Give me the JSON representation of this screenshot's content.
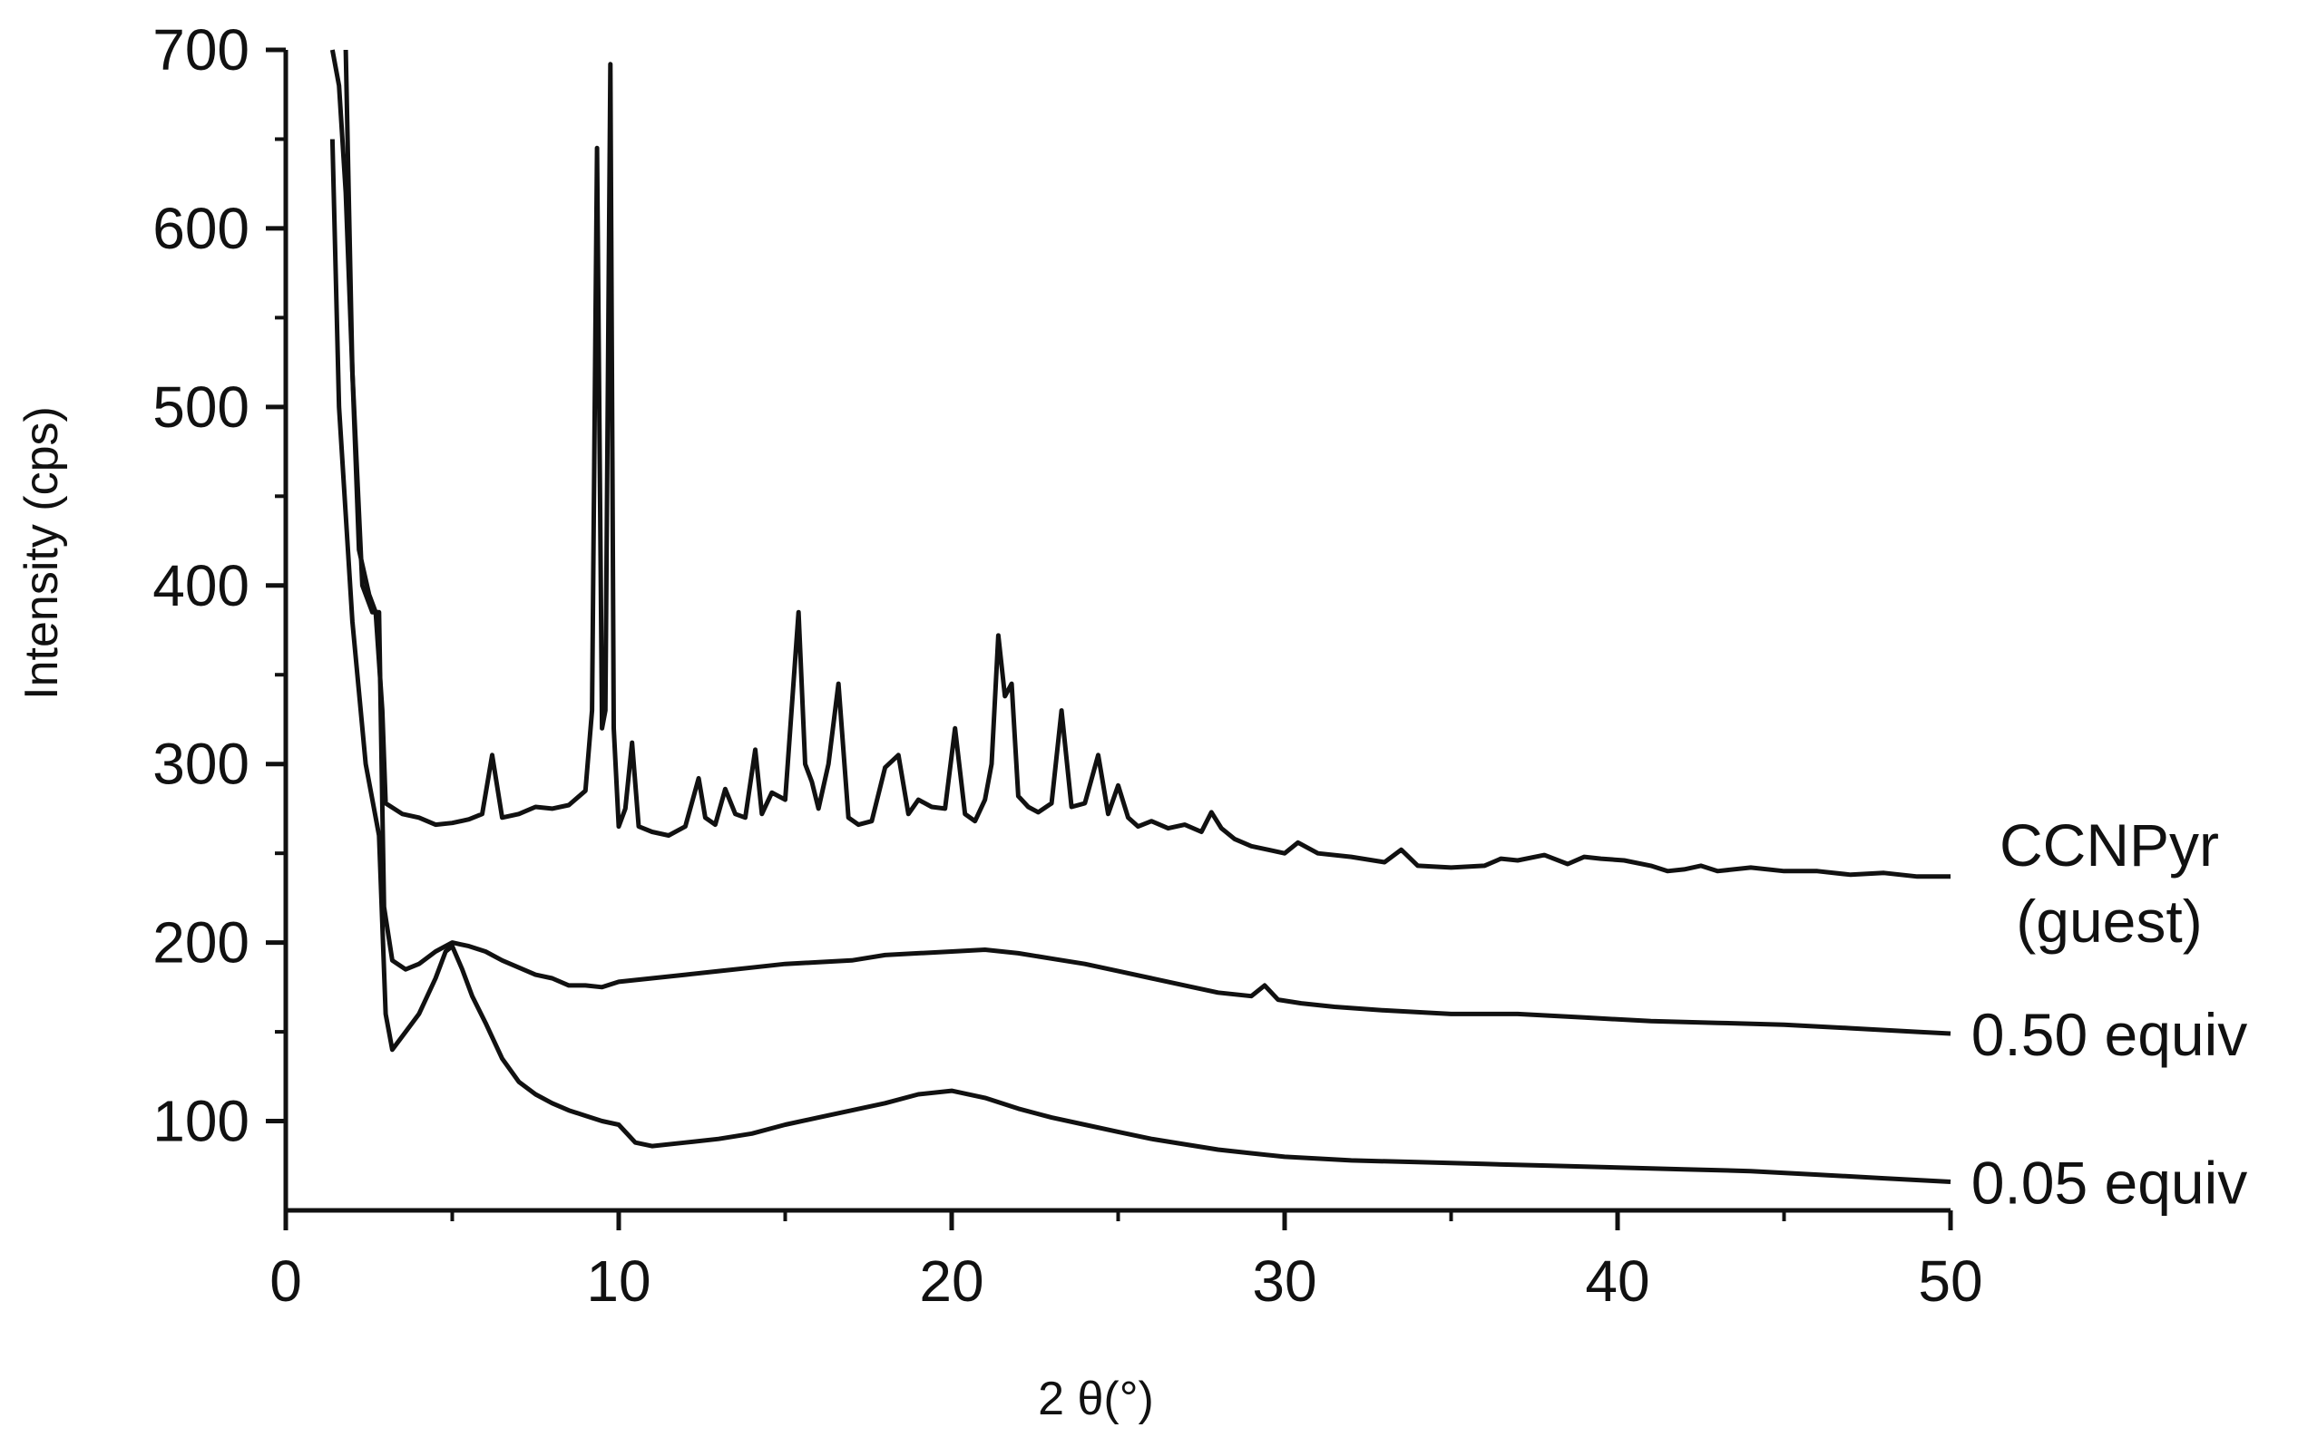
{
  "chart_data": {
    "type": "line",
    "title": "",
    "xlabel": "2 θ(°)",
    "ylabel": "Intensity (cps)",
    "xlim": [
      0,
      50
    ],
    "ylim": [
      50,
      700
    ],
    "x_ticks": [
      0,
      10,
      20,
      30,
      40,
      50
    ],
    "y_ticks": [
      100,
      200,
      300,
      400,
      500,
      600,
      700
    ],
    "grid": false,
    "legend": "none (series labeled at right end of each trace)",
    "line_color": "#111111",
    "series": [
      {
        "name": "CCNPyr (guest)",
        "label_lines": [
          "CCNPyr",
          "(guest)"
        ],
        "x": [
          1.4,
          1.6,
          1.8,
          2.0,
          2.2,
          2.5,
          2.7,
          2.9,
          3.0,
          3.5,
          4.0,
          4.5,
          5.0,
          5.5,
          5.9,
          6.2,
          6.5,
          7.0,
          7.5,
          8.0,
          8.5,
          9.0,
          9.2,
          9.35,
          9.5,
          9.6,
          9.75,
          9.85,
          10.0,
          10.2,
          10.4,
          10.6,
          11.0,
          11.5,
          12.0,
          12.4,
          12.6,
          12.9,
          13.2,
          13.5,
          13.8,
          14.1,
          14.3,
          14.6,
          15.0,
          15.4,
          15.6,
          15.8,
          16.0,
          16.3,
          16.6,
          16.9,
          17.2,
          17.6,
          18.0,
          18.4,
          18.7,
          19.0,
          19.4,
          19.8,
          20.1,
          20.4,
          20.7,
          21.0,
          21.2,
          21.4,
          21.6,
          21.8,
          22.0,
          22.3,
          22.6,
          23.0,
          23.3,
          23.6,
          24.0,
          24.4,
          24.7,
          25.0,
          25.3,
          25.6,
          26.0,
          26.5,
          27.0,
          27.5,
          27.8,
          28.1,
          28.5,
          29.0,
          29.5,
          30.0,
          30.4,
          31.0,
          32.0,
          33.0,
          33.5,
          34.0,
          35.0,
          36.0,
          36.5,
          37.0,
          37.8,
          38.5,
          39.0,
          39.5,
          40.2,
          41.0,
          41.5,
          42.0,
          42.5,
          43.0,
          44.0,
          45.0,
          46.0,
          47.0,
          48.0,
          49.0,
          50.0
        ],
        "y": [
          700,
          680,
          620,
          520,
          420,
          395,
          385,
          330,
          278,
          272,
          270,
          266,
          267,
          269,
          272,
          305,
          270,
          272,
          276,
          275,
          277,
          285,
          330,
          645,
          320,
          330,
          692,
          320,
          265,
          275,
          312,
          265,
          262,
          260,
          265,
          292,
          270,
          266,
          286,
          272,
          270,
          308,
          272,
          284,
          280,
          385,
          300,
          290,
          275,
          300,
          345,
          270,
          266,
          268,
          298,
          305,
          272,
          280,
          276,
          275,
          320,
          272,
          268,
          280,
          300,
          372,
          338,
          345,
          282,
          276,
          273,
          278,
          330,
          276,
          278,
          305,
          272,
          288,
          270,
          265,
          268,
          264,
          266,
          262,
          273,
          264,
          258,
          254,
          252,
          250,
          256,
          250,
          248,
          245,
          252,
          243,
          242,
          243,
          247,
          246,
          249,
          244,
          248,
          247,
          246,
          243,
          240,
          241,
          243,
          240,
          242,
          240,
          240,
          238,
          239,
          237,
          237
        ]
      },
      {
        "name": "0.50 equiv",
        "label_lines": [
          "0.50 equiv"
        ],
        "x": [
          1.8,
          2.0,
          2.3,
          2.6,
          2.8,
          2.95,
          3.2,
          3.6,
          4.0,
          4.5,
          5.0,
          5.5,
          6.0,
          6.5,
          7.0,
          7.5,
          8.0,
          8.5,
          9.0,
          9.5,
          10.0,
          11.0,
          12.0,
          13.0,
          14.0,
          15.0,
          16.0,
          17.0,
          18.0,
          19.0,
          20.0,
          21.0,
          22.0,
          23.0,
          24.0,
          25.0,
          26.0,
          27.0,
          28.0,
          29.0,
          29.4,
          29.8,
          30.5,
          31.5,
          33.0,
          35.0,
          37.0,
          39.0,
          41.0,
          43.0,
          45.0,
          47.0,
          49.0,
          50.0
        ],
        "y": [
          700,
          520,
          400,
          385,
          385,
          220,
          190,
          185,
          188,
          195,
          200,
          198,
          195,
          190,
          186,
          182,
          180,
          176,
          176,
          175,
          178,
          180,
          182,
          184,
          186,
          188,
          189,
          190,
          193,
          194,
          195,
          196,
          194,
          191,
          188,
          184,
          180,
          176,
          172,
          170,
          176,
          168,
          166,
          164,
          162,
          160,
          160,
          158,
          156,
          155,
          154,
          152,
          150,
          149
        ]
      },
      {
        "name": "0.05 equiv",
        "label_lines": [
          "0.05 equiv"
        ],
        "x": [
          1.4,
          1.6,
          2.0,
          2.4,
          2.8,
          3.0,
          3.2,
          3.6,
          4.0,
          4.5,
          4.8,
          5.0,
          5.3,
          5.6,
          6.0,
          6.5,
          7.0,
          7.5,
          8.0,
          8.5,
          9.0,
          9.5,
          10.0,
          10.5,
          11.0,
          12.0,
          13.0,
          14.0,
          15.0,
          16.0,
          17.0,
          18.0,
          19.0,
          20.0,
          21.0,
          22.0,
          23.0,
          24.0,
          25.0,
          26.0,
          27.0,
          28.0,
          29.0,
          30.0,
          32.0,
          34.0,
          36.0,
          38.0,
          40.0,
          42.0,
          44.0,
          46.0,
          48.0,
          50.0
        ],
        "y": [
          650,
          500,
          380,
          300,
          260,
          160,
          140,
          150,
          160,
          180,
          195,
          198,
          185,
          170,
          155,
          135,
          122,
          115,
          110,
          106,
          103,
          100,
          98,
          88,
          86,
          88,
          90,
          93,
          98,
          102,
          106,
          110,
          115,
          117,
          113,
          107,
          102,
          98,
          94,
          90,
          87,
          84,
          82,
          80,
          78,
          77,
          76,
          75,
          74,
          73,
          72,
          70,
          68,
          66
        ]
      }
    ]
  }
}
